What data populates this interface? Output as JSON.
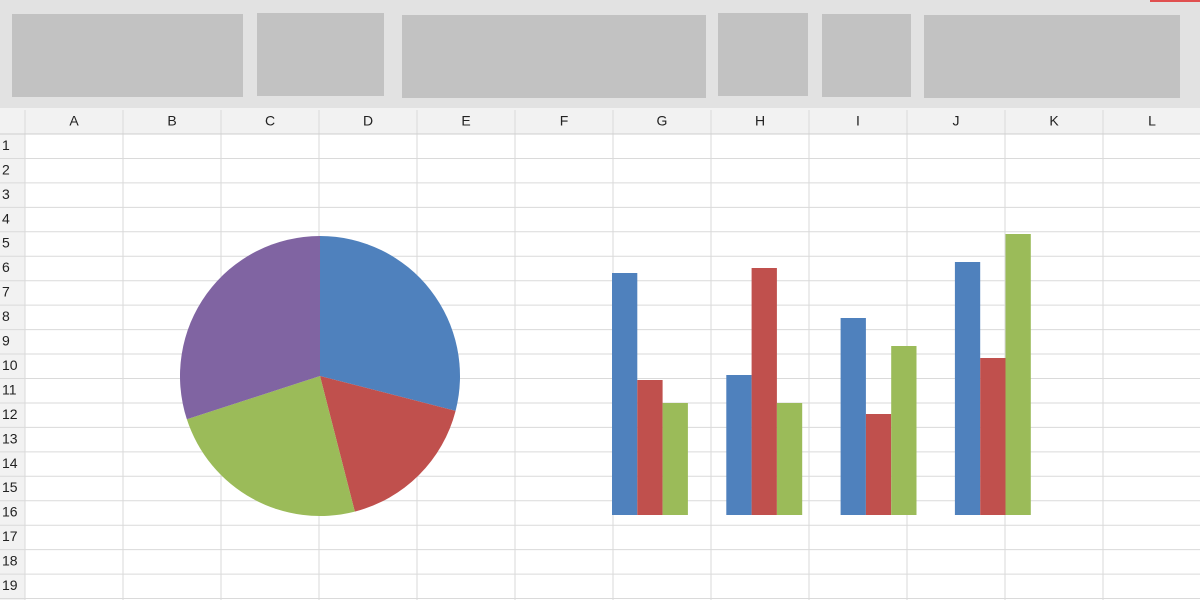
{
  "columns": [
    "A",
    "B",
    "C",
    "D",
    "E",
    "F",
    "G",
    "H",
    "I",
    "J",
    "K",
    "L"
  ],
  "rows": [
    1,
    2,
    3,
    4,
    5,
    6,
    7,
    8,
    9,
    10,
    11,
    12,
    13,
    14,
    15,
    16,
    17,
    18,
    19
  ],
  "chart_data": [
    {
      "type": "pie",
      "values": [
        29,
        17,
        24,
        30
      ],
      "colors": [
        "#4f81bd",
        "#c0504d",
        "#9bbb59",
        "#8064a2"
      ]
    },
    {
      "type": "bar",
      "categories": [
        null,
        null,
        null,
        null
      ],
      "series": [
        {
          "color": "#4f81bd",
          "values": [
            242,
            140,
            197,
            253
          ]
        },
        {
          "color": "#c0504d",
          "values": [
            135,
            247,
            101,
            157
          ]
        },
        {
          "color": "#9bbb59",
          "values": [
            112,
            112,
            169,
            281
          ]
        }
      ]
    }
  ]
}
